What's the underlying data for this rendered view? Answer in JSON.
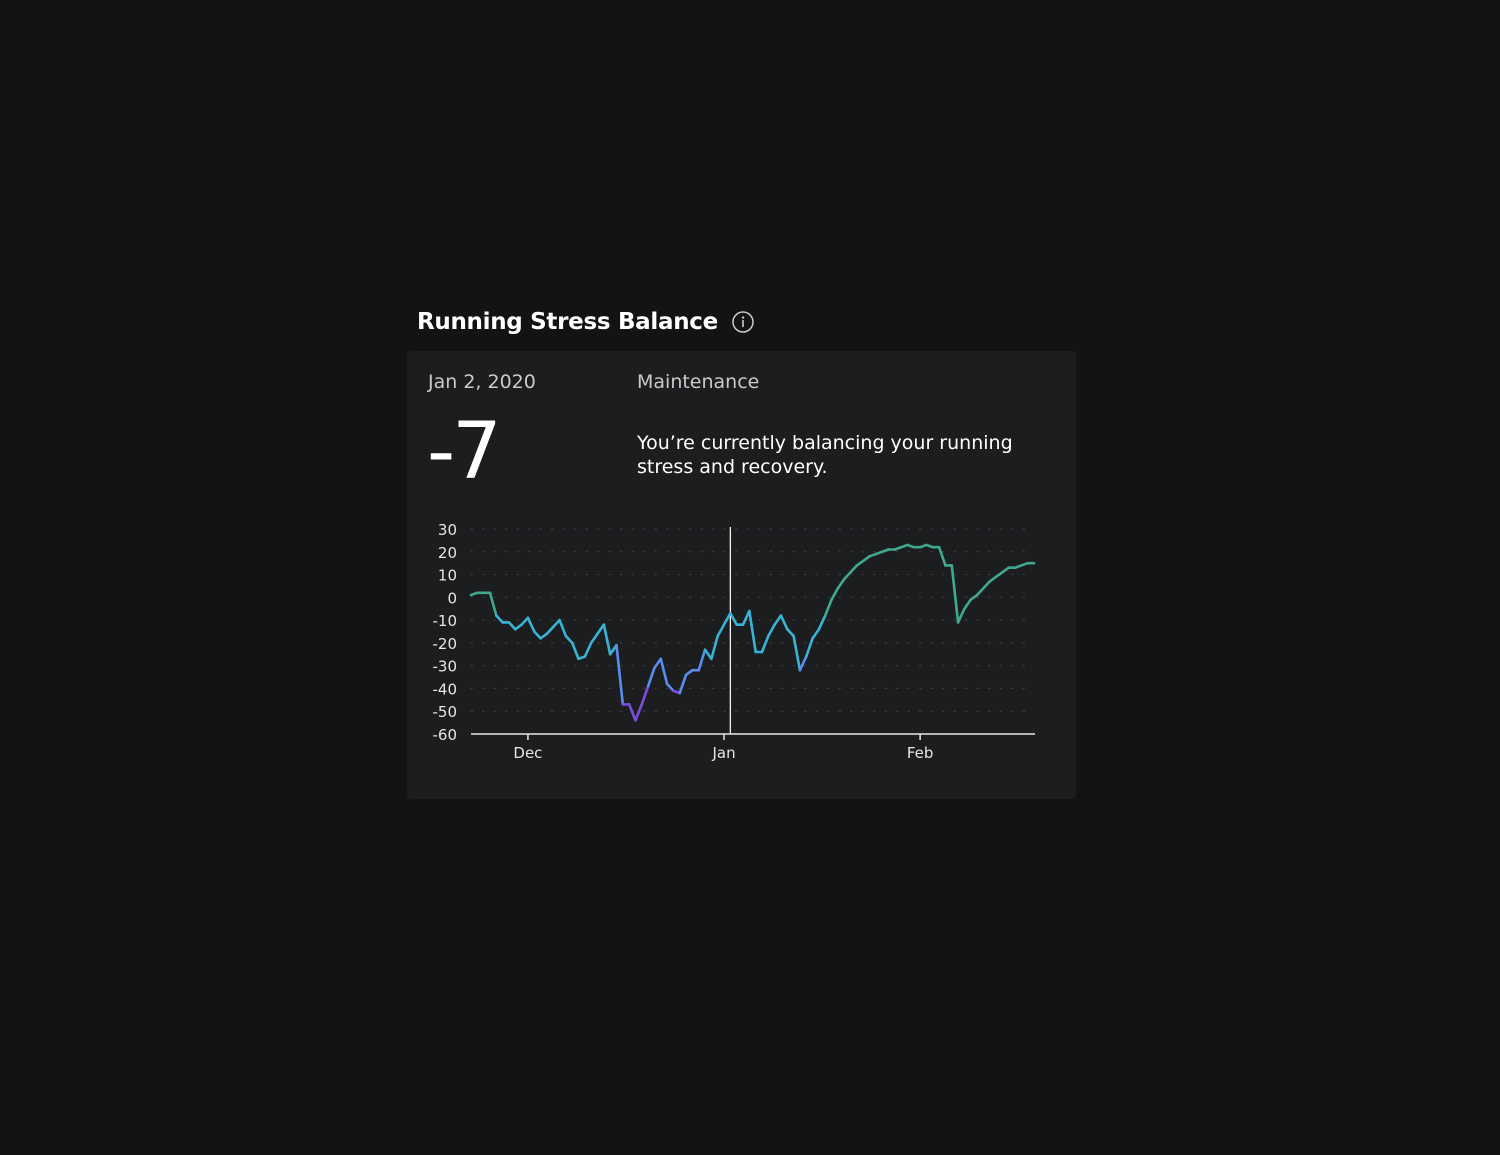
{
  "header": {
    "title": "Running Stress Balance",
    "info_icon": "info-circle-icon"
  },
  "summary": {
    "date": "Jan 2, 2020",
    "status": "Maintenance",
    "value": "-7",
    "description": "You’re currently balancing your running stress and recovery."
  },
  "colors": {
    "page_background": "#121315",
    "card_background": "#1c1d1f",
    "line_positive": "#3fa98f",
    "line_mid": "#38b3d4",
    "line_low": "#5b8cf0",
    "line_very_low": "#7c4ddb",
    "grid_dots": "#3a3b3e",
    "axis": "#e8e8e8"
  },
  "chart_data": {
    "type": "line",
    "title": "",
    "xlabel": "",
    "ylabel": "",
    "ylim": [
      -60,
      30
    ],
    "yticks": [
      "30",
      "20",
      "10",
      "0",
      "-10",
      "-20",
      "-30",
      "-40",
      "-50",
      "-60"
    ],
    "xtick_labels": [
      "Dec",
      "Jan",
      "Feb"
    ],
    "xtick_dates": [
      "2019-12-01",
      "2020-01-01",
      "2020-02-01"
    ],
    "x_range": [
      "2019-11-22",
      "2020-02-19"
    ],
    "grid": "dotted horizontal",
    "selected_date": "2020-01-02",
    "selected_value": -7,
    "series": [
      {
        "x": [
          "2019-11-22",
          "2019-11-23",
          "2019-11-24",
          "2019-11-25",
          "2019-11-26",
          "2019-11-27",
          "2019-11-28",
          "2019-11-29",
          "2019-11-30",
          "2019-12-01",
          "2019-12-02",
          "2019-12-03",
          "2019-12-04",
          "2019-12-05",
          "2019-12-06",
          "2019-12-07",
          "2019-12-08",
          "2019-12-09",
          "2019-12-10",
          "2019-12-11",
          "2019-12-12",
          "2019-12-13",
          "2019-12-14",
          "2019-12-15",
          "2019-12-16",
          "2019-12-17",
          "2019-12-18",
          "2019-12-19",
          "2019-12-20",
          "2019-12-21",
          "2019-12-22",
          "2019-12-23",
          "2019-12-24",
          "2019-12-25",
          "2019-12-26",
          "2019-12-27",
          "2019-12-28",
          "2019-12-29",
          "2019-12-30",
          "2019-12-31",
          "2020-01-01",
          "2020-01-02",
          "2020-01-03",
          "2020-01-04",
          "2020-01-05",
          "2020-01-06",
          "2020-01-07",
          "2020-01-08",
          "2020-01-09",
          "2020-01-10",
          "2020-01-11",
          "2020-01-12",
          "2020-01-13",
          "2020-01-14",
          "2020-01-15",
          "2020-01-16",
          "2020-01-17",
          "2020-01-18",
          "2020-01-19",
          "2020-01-20",
          "2020-01-21",
          "2020-01-22",
          "2020-01-23",
          "2020-01-24",
          "2020-01-25",
          "2020-01-26",
          "2020-01-27",
          "2020-01-28",
          "2020-01-29",
          "2020-01-30",
          "2020-01-31",
          "2020-02-01",
          "2020-02-02",
          "2020-02-03",
          "2020-02-04",
          "2020-02-05",
          "2020-02-06",
          "2020-02-07",
          "2020-02-08",
          "2020-02-09",
          "2020-02-10",
          "2020-02-11",
          "2020-02-12",
          "2020-02-13",
          "2020-02-14",
          "2020-02-15",
          "2020-02-16",
          "2020-02-17",
          "2020-02-18",
          "2020-02-19"
        ],
        "y": [
          1,
          2,
          2,
          2,
          -8,
          -11,
          -11,
          -14,
          -12,
          -9,
          -15,
          -18,
          -16,
          -13,
          -10,
          -17,
          -20,
          -27,
          -26,
          -20,
          -16,
          -12,
          -25,
          -21,
          -47,
          -47,
          -54,
          -47,
          -39,
          -31,
          -27,
          -38,
          -41,
          -42,
          -34,
          -32,
          -32,
          -23,
          -27,
          -17,
          -12,
          -7,
          -12,
          -12,
          -6,
          -24,
          -24,
          -17,
          -12,
          -8,
          -14,
          -17,
          -32,
          -26,
          -18,
          -14,
          -8,
          -1,
          4,
          8,
          11,
          14,
          16,
          18,
          19,
          20,
          21,
          21,
          22,
          23,
          22,
          22,
          23,
          22,
          22,
          14,
          14,
          -11,
          -5,
          -1,
          1,
          4,
          7,
          9,
          11,
          13,
          13,
          14,
          15,
          15
        ]
      }
    ]
  }
}
